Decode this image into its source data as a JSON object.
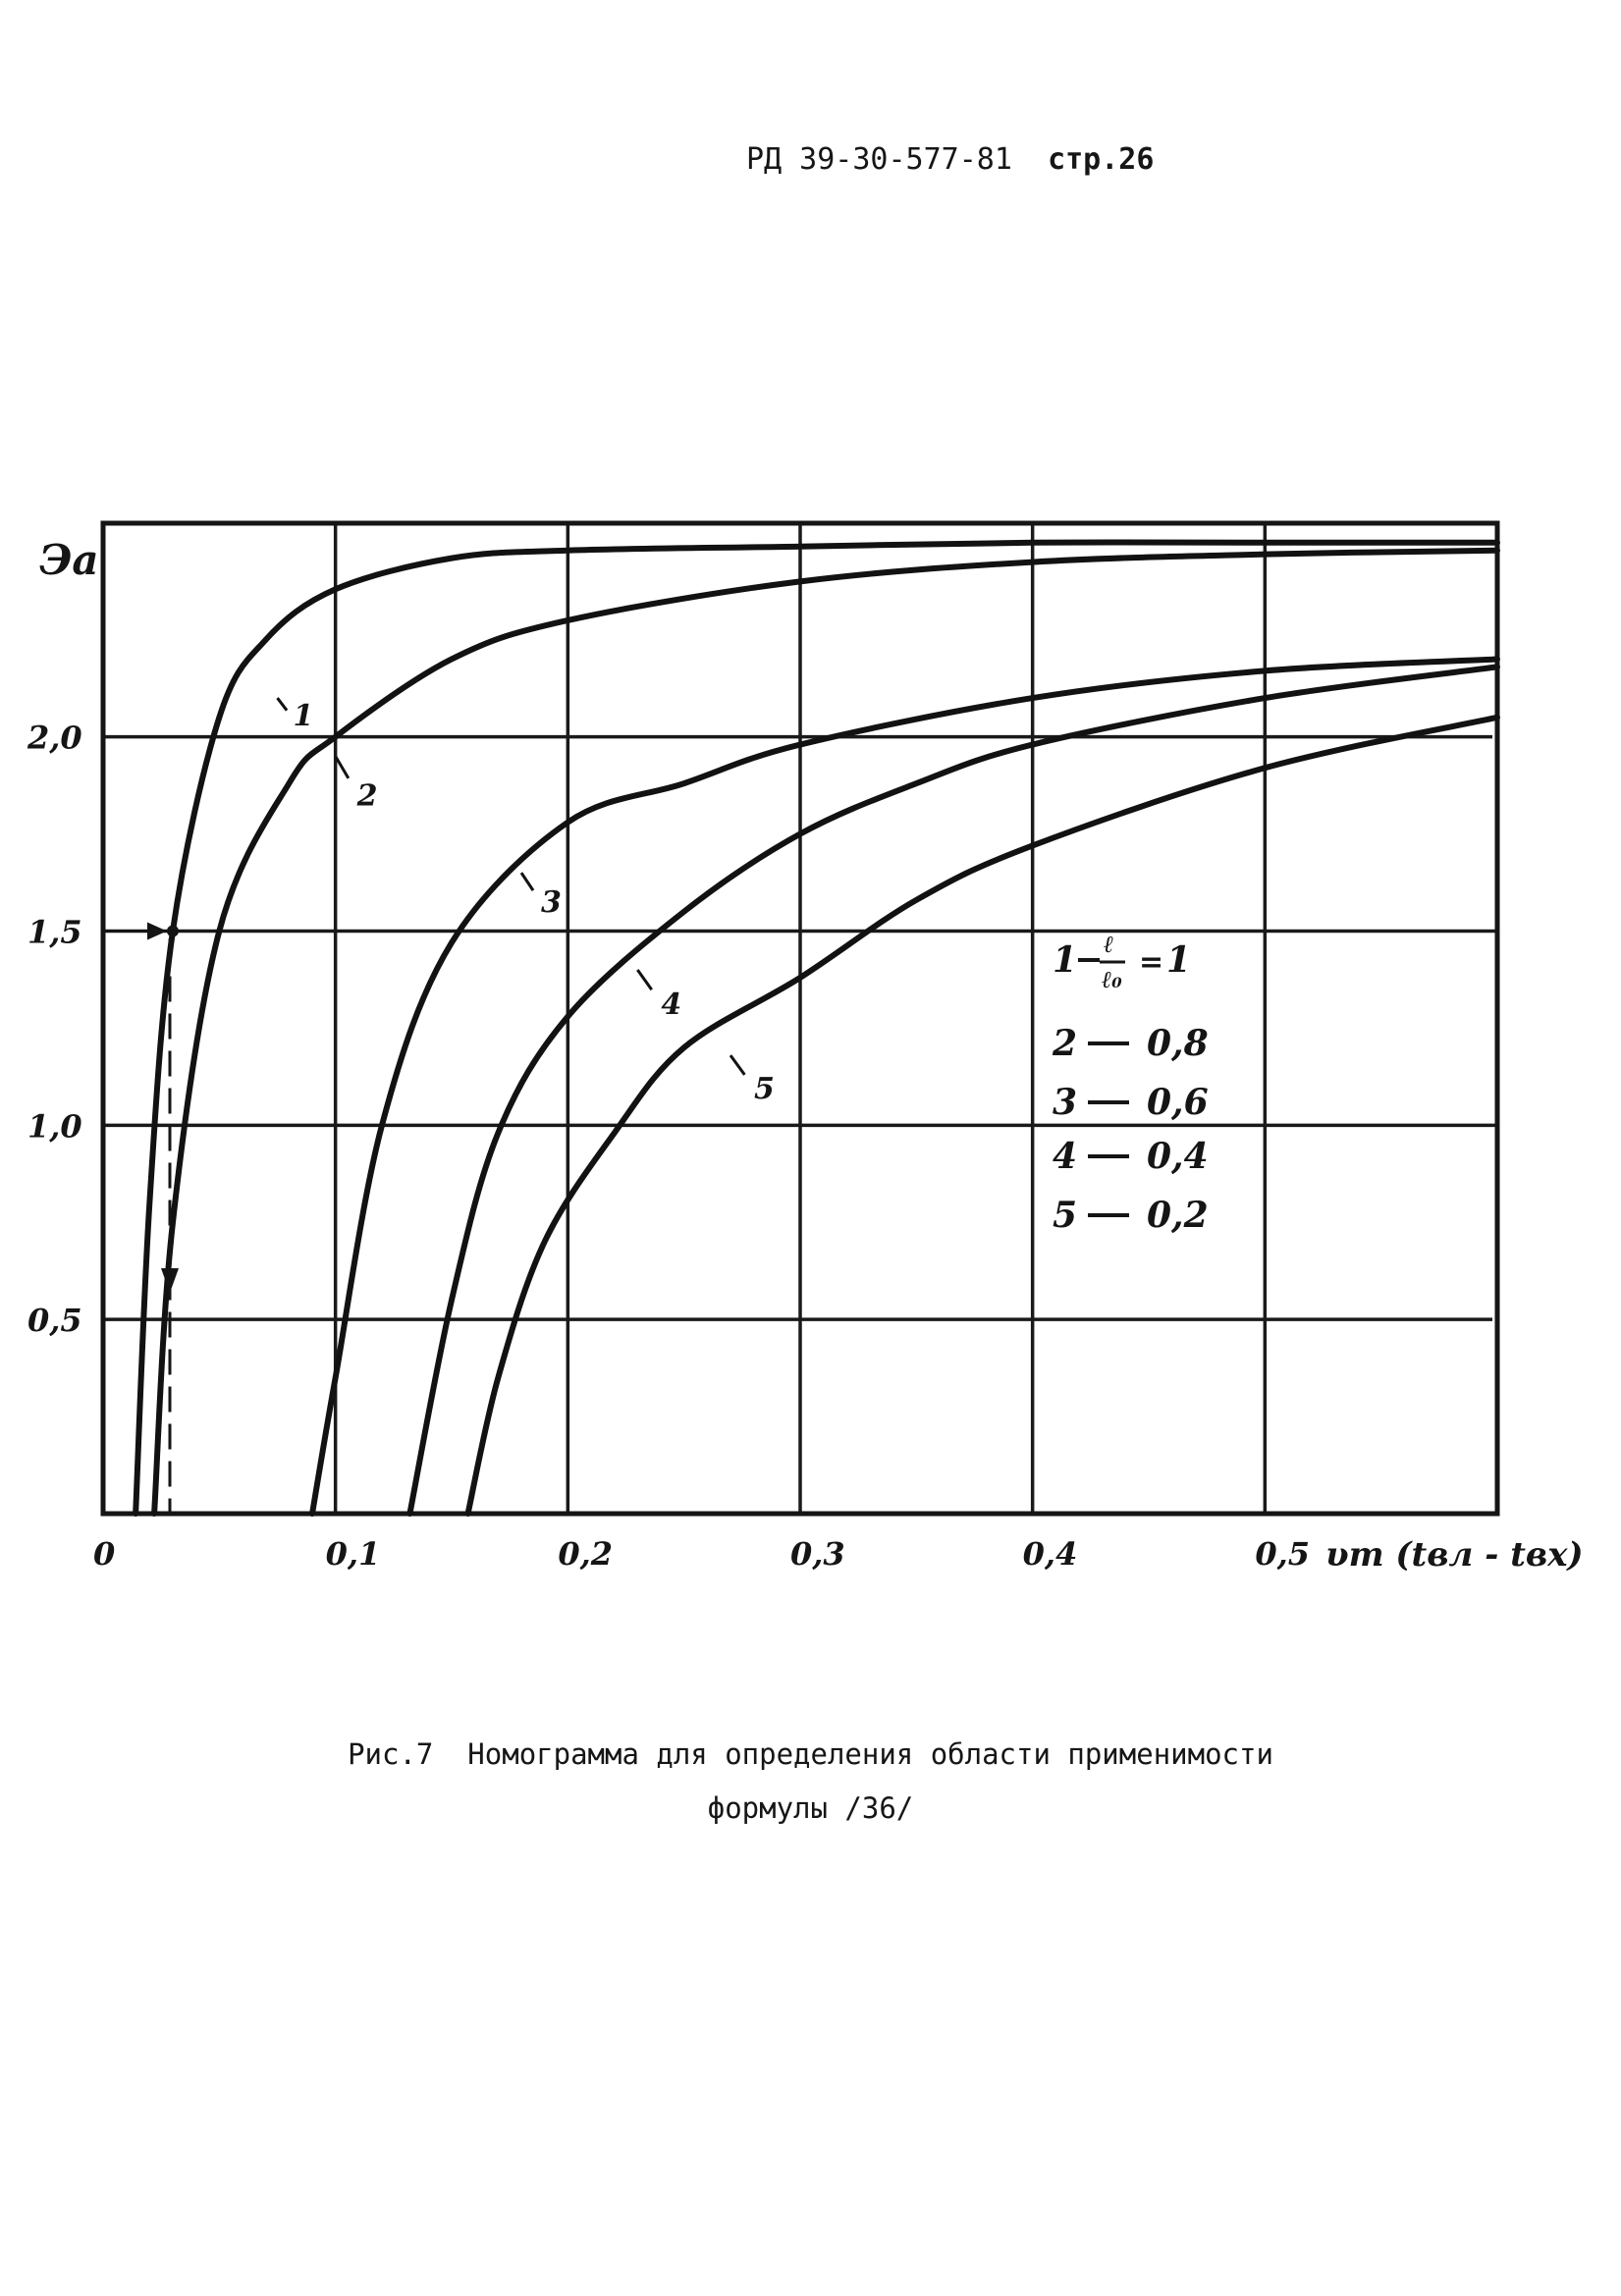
{
  "page": {
    "header_doc": "РД 39-30-577-81",
    "header_page": "стр.26"
  },
  "caption": {
    "line1": "Рис.7  Номограмма для определения области применимости",
    "line2": "формулы /36/"
  },
  "chart_data": {
    "type": "line",
    "ylabel": "Эа",
    "xlabel": "υm (tвл - tвх)",
    "x_ticks": [
      "0",
      "0,1",
      "0,2",
      "0,3",
      "0,4",
      "0,5"
    ],
    "y_ticks": [
      "0,5",
      "1,0",
      "1,5",
      "2,0"
    ],
    "xlim": [
      0,
      0.6
    ],
    "ylim": [
      0,
      2.55
    ],
    "grid": true,
    "series": [
      {
        "name": "1",
        "x": [
          0.014,
          0.02,
          0.03,
          0.05,
          0.07,
          0.1,
          0.15,
          0.2,
          0.3,
          0.4,
          0.5,
          0.6
        ],
        "y": [
          0,
          0.8,
          1.5,
          2.05,
          2.25,
          2.38,
          2.46,
          2.48,
          2.49,
          2.5,
          2.5,
          2.5
        ]
      },
      {
        "name": "2",
        "x": [
          0.022,
          0.03,
          0.05,
          0.08,
          0.1,
          0.15,
          0.2,
          0.3,
          0.4,
          0.5,
          0.6
        ],
        "y": [
          0,
          0.75,
          1.5,
          1.88,
          2.0,
          2.2,
          2.3,
          2.4,
          2.45,
          2.47,
          2.48
        ]
      },
      {
        "name": "3",
        "x": [
          0.09,
          0.1,
          0.12,
          0.15,
          0.2,
          0.25,
          0.3,
          0.4,
          0.5,
          0.6
        ],
        "y": [
          0,
          0.35,
          1.0,
          1.47,
          1.78,
          1.88,
          1.98,
          2.1,
          2.17,
          2.2
        ]
      },
      {
        "name": "4",
        "x": [
          0.132,
          0.15,
          0.17,
          0.2,
          0.25,
          0.3,
          0.35,
          0.4,
          0.5,
          0.6
        ],
        "y": [
          0,
          0.55,
          0.98,
          1.28,
          1.55,
          1.75,
          1.88,
          1.98,
          2.1,
          2.18
        ]
      },
      {
        "name": "5",
        "x": [
          0.157,
          0.17,
          0.19,
          0.22,
          0.25,
          0.3,
          0.35,
          0.4,
          0.5,
          0.6
        ],
        "y": [
          0,
          0.35,
          0.7,
          0.98,
          1.2,
          1.38,
          1.58,
          1.72,
          1.92,
          2.05
        ]
      }
    ],
    "legend": {
      "placement": "right",
      "entries": [
        {
          "num": "1",
          "value": "1"
        },
        {
          "num": "2",
          "value": "0,8"
        },
        {
          "num": "3",
          "value": "0,6"
        },
        {
          "num": "4",
          "value": "0,4"
        },
        {
          "num": "5",
          "value": "0,2"
        }
      ]
    },
    "marked_point": {
      "x": 0.03,
      "y": 1.5
    }
  }
}
